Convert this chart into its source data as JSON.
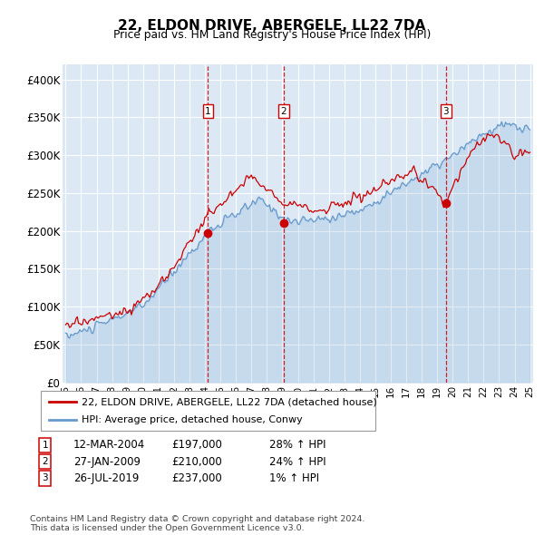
{
  "title": "22, ELDON DRIVE, ABERGELE, LL22 7DA",
  "subtitle": "Price paid vs. HM Land Registry's House Price Index (HPI)",
  "ylim": [
    0,
    420000
  ],
  "yticks": [
    0,
    50000,
    100000,
    150000,
    200000,
    250000,
    300000,
    350000,
    400000
  ],
  "ytick_labels": [
    "£0",
    "£50K",
    "£100K",
    "£150K",
    "£200K",
    "£250K",
    "£300K",
    "£350K",
    "£400K"
  ],
  "background_color": "#ffffff",
  "plot_bg_color": "#dce9f5",
  "grid_color": "#ffffff",
  "hpi_color": "#6699cc",
  "price_color": "#cc0000",
  "vline_color": "#cc0000",
  "transactions": [
    {
      "num": 1,
      "date_label": "12-MAR-2004",
      "price": 197000,
      "hpi_pct": "28%",
      "year": 2004.2
    },
    {
      "num": 2,
      "date_label": "27-JAN-2009",
      "price": 210000,
      "hpi_pct": "24%",
      "year": 2009.07
    },
    {
      "num": 3,
      "date_label": "26-JUL-2019",
      "price": 237000,
      "hpi_pct": "1%",
      "year": 2019.56
    }
  ],
  "legend_property_label": "22, ELDON DRIVE, ABERGELE, LL22 7DA (detached house)",
  "legend_hpi_label": "HPI: Average price, detached house, Conwy",
  "footnote": "Contains HM Land Registry data © Crown copyright and database right 2024.\nThis data is licensed under the Open Government Licence v3.0.",
  "x_start_year": 1995,
  "x_end_year": 2025
}
